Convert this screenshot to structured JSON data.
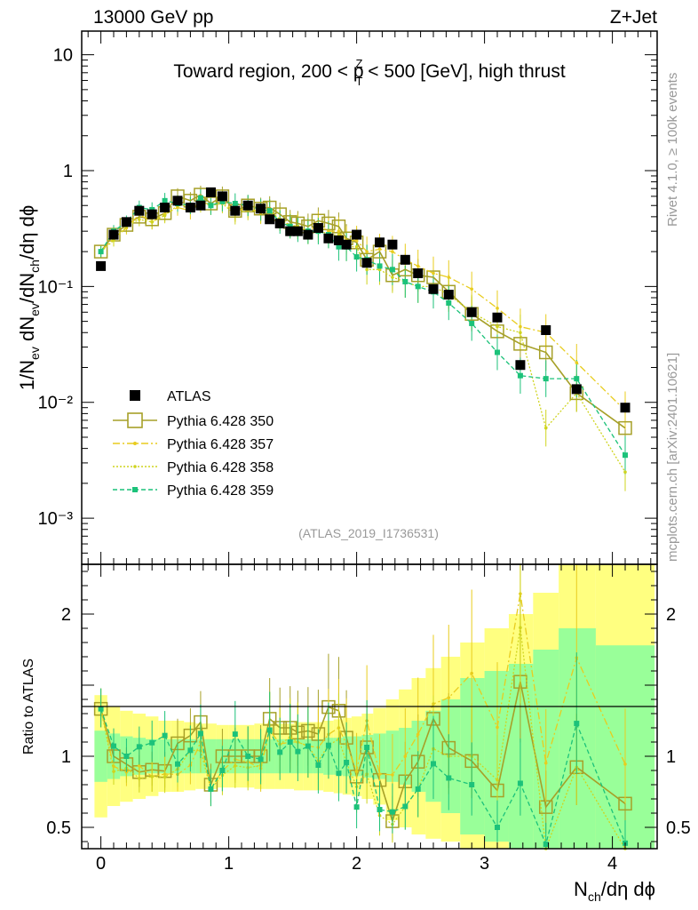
{
  "header": {
    "left": "13000 GeV pp",
    "right": "Z+Jet"
  },
  "side_labels": {
    "rivet": "Rivet 4.1.0, ≥ 100k events",
    "mcplots": "mcplots.cern.ch [arXiv:2401.10621]"
  },
  "chart_data": [
    {
      "type": "scatter",
      "title_parts": {
        "a": "Toward region, 200 < p",
        "sup": "Z",
        "sub": "T",
        "b": " < 500 [GeV], high thrust"
      },
      "analysis_tag": "(ATLAS_2019_I1736531)",
      "xlabel": {
        "main": "N",
        "sub": "ch",
        "rest": "/dη dϕ"
      },
      "ylabel": {
        "p1": "1/N",
        "s1": "ev",
        "p2": " dN",
        "s2": "ev",
        "p3": "/dN",
        "s3": "ch",
        "p4": "/dη dϕ"
      },
      "yscale": "log",
      "xlim": [
        -0.15,
        4.35
      ],
      "ylim": [
        0.0004,
        16
      ],
      "xticks": [
        "0",
        "1",
        "2",
        "3",
        "4"
      ],
      "yticks": [
        {
          "value": 10,
          "label": "10"
        },
        {
          "value": 1,
          "label": "1"
        },
        {
          "value": 0.1,
          "label": "10⁻¹"
        },
        {
          "value": 0.01,
          "label": "10⁻²"
        },
        {
          "value": 0.001,
          "label": "10⁻³"
        }
      ],
      "legend_position": "bottom-left",
      "x": [
        0,
        0.1,
        0.2,
        0.3,
        0.4,
        0.5,
        0.6,
        0.7,
        0.78,
        0.86,
        0.95,
        1.05,
        1.15,
        1.25,
        1.32,
        1.4,
        1.48,
        1.54,
        1.62,
        1.7,
        1.78,
        1.86,
        1.92,
        2.0,
        2.08,
        2.18,
        2.28,
        2.38,
        2.48,
        2.6,
        2.72,
        2.9,
        3.1,
        3.28,
        3.48,
        3.72,
        4.1
      ],
      "series": [
        {
          "name": "ATLAS",
          "color": "#000000",
          "style": "data",
          "values": [
            0.15,
            0.28,
            0.36,
            0.45,
            0.42,
            0.48,
            0.55,
            0.48,
            0.5,
            0.65,
            0.6,
            0.45,
            0.5,
            0.47,
            0.38,
            0.35,
            0.3,
            0.3,
            0.28,
            0.32,
            0.26,
            0.25,
            0.23,
            0.28,
            0.16,
            0.24,
            0.23,
            0.17,
            0.13,
            0.095,
            0.085,
            0.06,
            0.054,
            0.021,
            0.042,
            0.013,
            0.009
          ]
        },
        {
          "name": "Pythia 6.428 350",
          "color": "#a6a028",
          "style": "solid",
          "values": [
            0.2,
            0.28,
            0.34,
            0.4,
            0.38,
            0.43,
            0.6,
            0.55,
            0.62,
            0.52,
            0.6,
            0.45,
            0.5,
            0.47,
            0.48,
            0.42,
            0.36,
            0.35,
            0.33,
            0.37,
            0.35,
            0.33,
            0.26,
            0.24,
            0.17,
            0.2,
            0.125,
            0.14,
            0.125,
            0.12,
            0.09,
            0.058,
            0.041,
            0.032,
            0.027,
            0.012,
            0.006
          ]
        },
        {
          "name": "Pythia 6.428 357",
          "color": "#e8cc1e",
          "style": "dashdot",
          "values": [
            0.2,
            0.26,
            0.32,
            0.42,
            0.36,
            0.42,
            0.48,
            0.45,
            0.55,
            0.5,
            0.54,
            0.44,
            0.48,
            0.43,
            0.45,
            0.38,
            0.33,
            0.33,
            0.3,
            0.34,
            0.3,
            0.3,
            0.25,
            0.25,
            0.2,
            0.21,
            0.2,
            0.17,
            0.15,
            0.13,
            0.12,
            0.095,
            0.065,
            0.045,
            0.04,
            0.022,
            0.0085
          ]
        },
        {
          "name": "Pythia 6.428 358",
          "color": "#cfd41e",
          "style": "dotted",
          "values": [
            0.2,
            0.25,
            0.33,
            0.38,
            0.36,
            0.41,
            0.5,
            0.5,
            0.52,
            0.5,
            0.52,
            0.42,
            0.46,
            0.44,
            0.45,
            0.38,
            0.34,
            0.33,
            0.3,
            0.31,
            0.28,
            0.28,
            0.22,
            0.22,
            0.14,
            0.14,
            0.12,
            0.11,
            0.1,
            0.1,
            0.085,
            0.06,
            0.045,
            0.04,
            0.006,
            0.012,
            0.0025
          ]
        },
        {
          "name": "Pythia 6.428 359",
          "color": "#1cc27a",
          "style": "dashed",
          "values": [
            0.2,
            0.3,
            0.36,
            0.48,
            0.46,
            0.55,
            0.52,
            0.5,
            0.58,
            0.5,
            0.54,
            0.52,
            0.5,
            0.46,
            0.45,
            0.36,
            0.33,
            0.31,
            0.3,
            0.3,
            0.28,
            0.22,
            0.22,
            0.18,
            0.17,
            0.15,
            0.14,
            0.11,
            0.1,
            0.09,
            0.072,
            0.048,
            0.027,
            0.017,
            0.016,
            0.016,
            0.0035
          ]
        }
      ]
    },
    {
      "type": "scatter",
      "ylabel": "Ratio to ATLAS",
      "xlim": [
        -0.15,
        4.35
      ],
      "ylim": [
        0.35,
        2.35
      ],
      "yticks": [
        {
          "value": 0.5,
          "label": "0.5"
        },
        {
          "value": 1,
          "label": "1"
        },
        {
          "value": 2,
          "label": "2"
        }
      ],
      "band_edges": [
        -0.05,
        0.05,
        0.15,
        0.25,
        0.35,
        0.45,
        0.55,
        0.65,
        0.74,
        0.82,
        0.905,
        1.0,
        1.1,
        1.2,
        1.285,
        1.36,
        1.44,
        1.51,
        1.58,
        1.66,
        1.74,
        1.82,
        1.89,
        1.96,
        2.04,
        2.13,
        2.23,
        2.33,
        2.43,
        2.54,
        2.66,
        2.81,
        3.0,
        3.19,
        3.38,
        3.58,
        3.87,
        4.33
      ],
      "band_yellow_lo": [
        0.57,
        0.65,
        0.68,
        0.7,
        0.72,
        0.75,
        0.75,
        0.76,
        0.77,
        0.77,
        0.78,
        0.78,
        0.78,
        0.77,
        0.77,
        0.77,
        0.77,
        0.76,
        0.76,
        0.76,
        0.75,
        0.74,
        0.73,
        0.72,
        0.7,
        0.66,
        0.55,
        0.5,
        0.45,
        0.42,
        0.4,
        0.35,
        0.35,
        0.35,
        0.35,
        0.35,
        0.35
      ],
      "band_yellow_hi": [
        1.43,
        1.35,
        1.32,
        1.3,
        1.28,
        1.25,
        1.25,
        1.24,
        1.23,
        1.23,
        1.22,
        1.22,
        1.22,
        1.23,
        1.23,
        1.23,
        1.23,
        1.24,
        1.24,
        1.24,
        1.25,
        1.26,
        1.27,
        1.28,
        1.3,
        1.34,
        1.4,
        1.47,
        1.55,
        1.62,
        1.7,
        1.8,
        1.9,
        2.0,
        2.15,
        2.35,
        2.35
      ],
      "band_green_lo": [
        0.82,
        0.84,
        0.86,
        0.87,
        0.88,
        0.88,
        0.88,
        0.88,
        0.88,
        0.88,
        0.88,
        0.88,
        0.88,
        0.88,
        0.88,
        0.88,
        0.88,
        0.88,
        0.88,
        0.88,
        0.87,
        0.87,
        0.86,
        0.86,
        0.85,
        0.84,
        0.82,
        0.8,
        0.75,
        0.68,
        0.6,
        0.45,
        0.4,
        0.35,
        0.35,
        0.35,
        0.35
      ],
      "band_green_hi": [
        1.18,
        1.16,
        1.14,
        1.13,
        1.12,
        1.12,
        1.12,
        1.12,
        1.12,
        1.12,
        1.12,
        1.12,
        1.12,
        1.12,
        1.12,
        1.12,
        1.12,
        1.12,
        1.12,
        1.12,
        1.13,
        1.13,
        1.14,
        1.14,
        1.15,
        1.16,
        1.18,
        1.2,
        1.25,
        1.32,
        1.4,
        1.55,
        1.6,
        1.65,
        1.75,
        1.9,
        1.78
      ]
    }
  ]
}
